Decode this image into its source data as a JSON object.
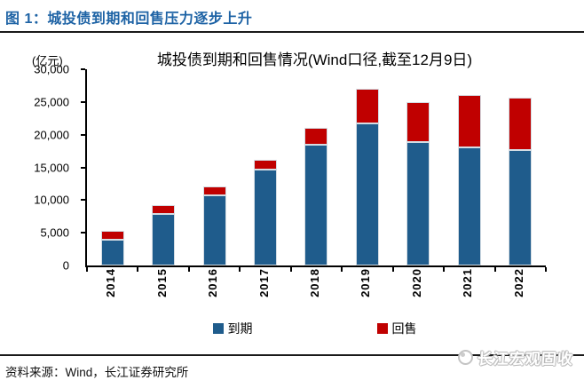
{
  "figure": {
    "title": "图 1：城投债到期和回售压力逐步上升"
  },
  "chart": {
    "y_unit": "(亿元)"
  },
  "chart_data": {
    "type": "bar",
    "stacked": true,
    "title": "城投债到期和回售情况(Wind口径,截至12月9日)",
    "categories": [
      "2014",
      "2015",
      "2016",
      "2017",
      "2018",
      "2019",
      "2020",
      "2021",
      "2022"
    ],
    "series": [
      {
        "name": "到期",
        "color": "#1F5C8C",
        "values": [
          3900,
          7900,
          10700,
          14600,
          18400,
          21700,
          18900,
          18000,
          17600
        ]
      },
      {
        "name": "回售",
        "color": "#C00000",
        "values": [
          1400,
          1400,
          1400,
          1500,
          2600,
          5300,
          6100,
          8100,
          8100
        ]
      }
    ],
    "xlabel": "",
    "ylabel": "(亿元)",
    "ylim": [
      0,
      30000
    ],
    "ytick_labels": [
      "0",
      "5,000",
      "10,000",
      "15,000",
      "20,000",
      "25,000",
      "30,000"
    ],
    "grid": false,
    "legend_position": "bottom"
  },
  "footer": {
    "source": "资料来源：Wind，长江证券研究所"
  },
  "watermark": {
    "text": "长江宏观固收"
  },
  "colors": {
    "figure_title": "#1E63A5",
    "rule": "#1A1A1A",
    "bar_maturity": "#1F5C8C",
    "bar_resale": "#C00000"
  }
}
